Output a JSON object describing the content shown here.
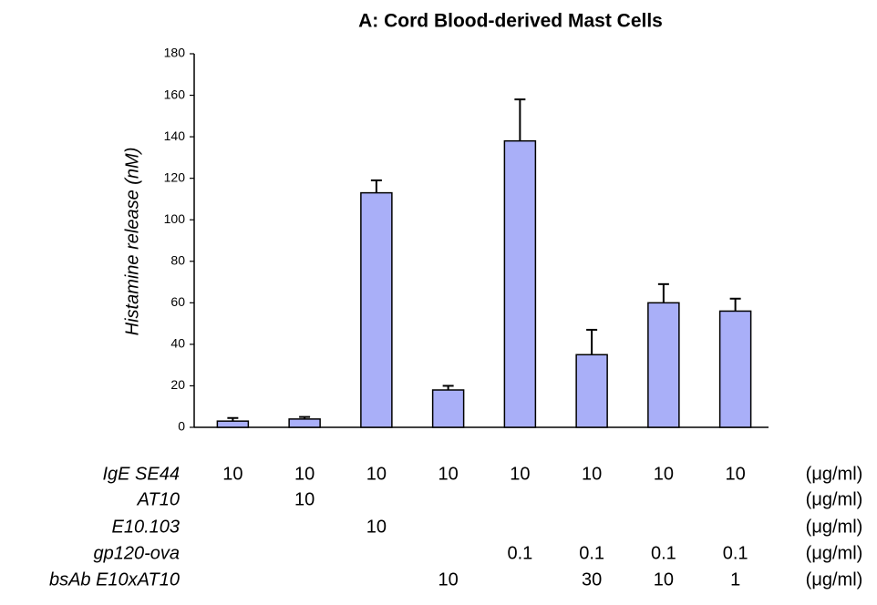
{
  "chart_data": {
    "type": "bar",
    "title": "A: Cord Blood-derived Mast Cells",
    "y_label": "Histamine release (nM)",
    "categories": [
      null,
      null,
      null,
      null,
      null,
      null,
      null,
      null
    ],
    "values": [
      3,
      4,
      113,
      18,
      138,
      35,
      60,
      56
    ],
    "errors": [
      1.5,
      1,
      6,
      2,
      20,
      12,
      9,
      6
    ],
    "color": "#a9aff8",
    "ylim": [
      0,
      180
    ],
    "yticks": [
      0,
      20,
      40,
      60,
      80,
      100,
      120,
      140,
      160,
      180
    ],
    "conditions": [
      {
        "label": "IgE SE44",
        "cells": [
          "10",
          "10",
          "10",
          "10",
          "10",
          "10",
          "10",
          "10"
        ],
        "unit": "(μg/ml)"
      },
      {
        "label": "AT10",
        "cells": [
          null,
          "10",
          null,
          null,
          null,
          null,
          null,
          null
        ],
        "unit": "(μg/ml)"
      },
      {
        "label": "E10.103",
        "cells": [
          null,
          null,
          "10",
          null,
          null,
          null,
          null,
          null
        ],
        "unit": "(μg/ml)"
      },
      {
        "label": "gp120-ova",
        "cells": [
          null,
          null,
          null,
          null,
          "0.1",
          "0.1",
          "0.1",
          "0.1"
        ],
        "unit": "(μg/ml)"
      },
      {
        "label": "bsAb E10xAT10",
        "cells": [
          null,
          null,
          null,
          "10",
          null,
          "30",
          "10",
          "1"
        ],
        "unit": "(μg/ml)"
      }
    ]
  }
}
